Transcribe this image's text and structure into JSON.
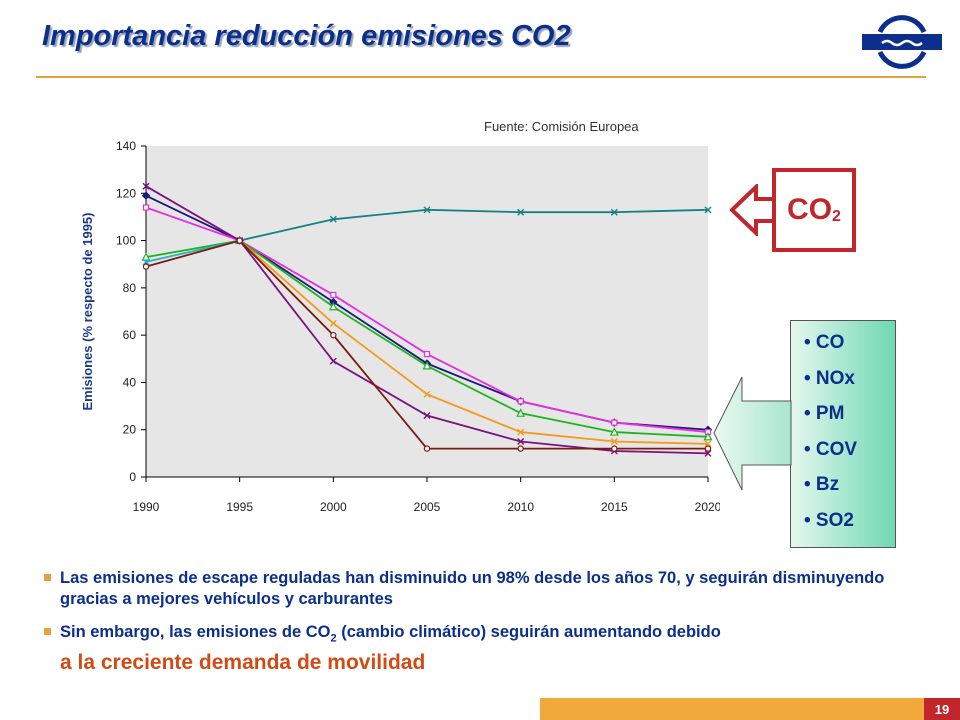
{
  "header": {
    "title": "Importancia reducción emisiones CO2",
    "logo_icon": "company-logo-icon"
  },
  "source_note": "Fuente: Comisión  Europea",
  "chart_data": {
    "type": "line",
    "title": "",
    "xlabel": "",
    "ylabel": "Emisiones (% respecto de 1995)",
    "x": [
      1990,
      1995,
      2000,
      2005,
      2010,
      2015,
      2020
    ],
    "xticks": [
      "1990",
      "1995",
      "2000",
      "2005",
      "2010",
      "2015",
      "2020"
    ],
    "yticks": [
      "0",
      "20",
      "40",
      "60",
      "80",
      "100",
      "120",
      "140"
    ],
    "ylim": [
      0,
      140
    ],
    "grid": false,
    "plot_background": "#e6e6e6",
    "series": [
      {
        "color": "#138283",
        "marker": "x",
        "values": [
          null,
          100,
          109,
          113,
          112,
          112,
          113
        ]
      },
      {
        "color": "#1b1b78",
        "marker": "diamond",
        "values": [
          119,
          100,
          74,
          48,
          32,
          23,
          20
        ]
      },
      {
        "color": "#e62ee0",
        "marker": "square",
        "values": [
          114,
          100,
          77,
          52,
          32,
          23,
          19
        ]
      },
      {
        "color": "#1cb61c",
        "marker": "triangle",
        "values": [
          93,
          100,
          72,
          47,
          27,
          19,
          17
        ]
      },
      {
        "color": "#2ab0c8",
        "marker": "x",
        "values": [
          91,
          100,
          null,
          null,
          null,
          null,
          null
        ]
      },
      {
        "color": "#f39a1a",
        "marker": "x",
        "values": [
          null,
          100,
          65,
          35,
          19,
          15,
          14
        ]
      },
      {
        "color": "#7b127d",
        "marker": "x",
        "values": [
          123,
          100,
          49,
          26,
          15,
          11,
          10
        ]
      },
      {
        "color": "#7b1a10",
        "marker": "circle",
        "values": [
          89,
          100,
          60,
          12,
          12,
          12,
          12
        ]
      }
    ]
  },
  "co2_box": {
    "label": "CO",
    "sub": "2",
    "color": "#c0262b"
  },
  "pollutants": [
    "• CO",
    "• NOx",
    "• PM",
    "• COV",
    "• Bz",
    "• SO2"
  ],
  "bullets": {
    "b1": "Las emisiones de escape reguladas han disminuido un  98% desde los años 70, y seguirán disminuyendo gracias a mejores vehículos y carburantes",
    "b2_pre": "Sin embargo, las emisiones de CO",
    "b2_sub": "2",
    "b2_post": " (cambio climático) seguirán aumentando debido",
    "b2_highlight": "a la creciente demanda de movilidad"
  },
  "footer": {
    "page_number": "19"
  }
}
